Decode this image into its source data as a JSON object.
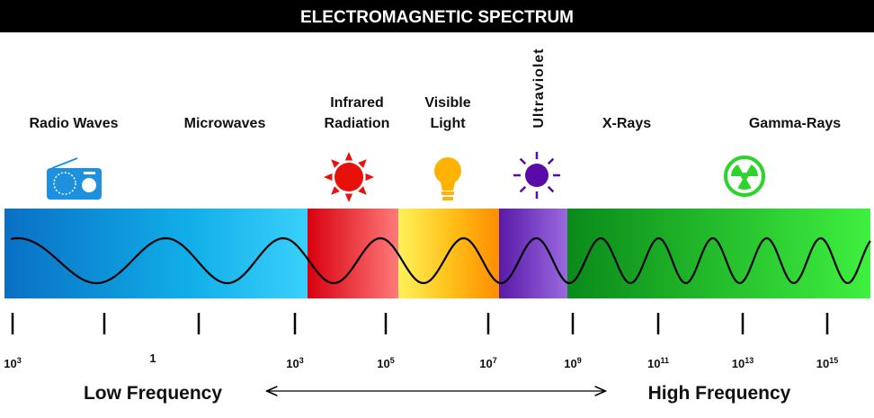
{
  "header": {
    "title": "ELECTROMAGNETIC SPECTRUM"
  },
  "bands": [
    {
      "lines": [
        "Radio Waves"
      ]
    },
    {
      "lines": [
        "Microwaves"
      ]
    },
    {
      "lines": [
        "Infrared",
        "Radiation"
      ]
    },
    {
      "lines": [
        "Visible",
        "Light"
      ]
    },
    {
      "lines": [
        "Ultraviolet"
      ]
    },
    {
      "lines": [
        "X-Rays"
      ]
    },
    {
      "lines": [
        "Gamma-Rays"
      ]
    }
  ],
  "scale": [
    {
      "base": "10",
      "exp": "3"
    },
    {
      "base": "1"
    },
    {
      "base": "10",
      "exp": "3"
    },
    {
      "base": "10",
      "exp": "5"
    },
    {
      "base": "10",
      "exp": "7"
    },
    {
      "base": "10",
      "exp": "9"
    },
    {
      "base": "10",
      "exp": "11"
    },
    {
      "base": "10",
      "exp": "13"
    },
    {
      "base": "10",
      "exp": "15"
    }
  ],
  "footer": {
    "low": "Low Frequency",
    "high": "High Frequency"
  }
}
